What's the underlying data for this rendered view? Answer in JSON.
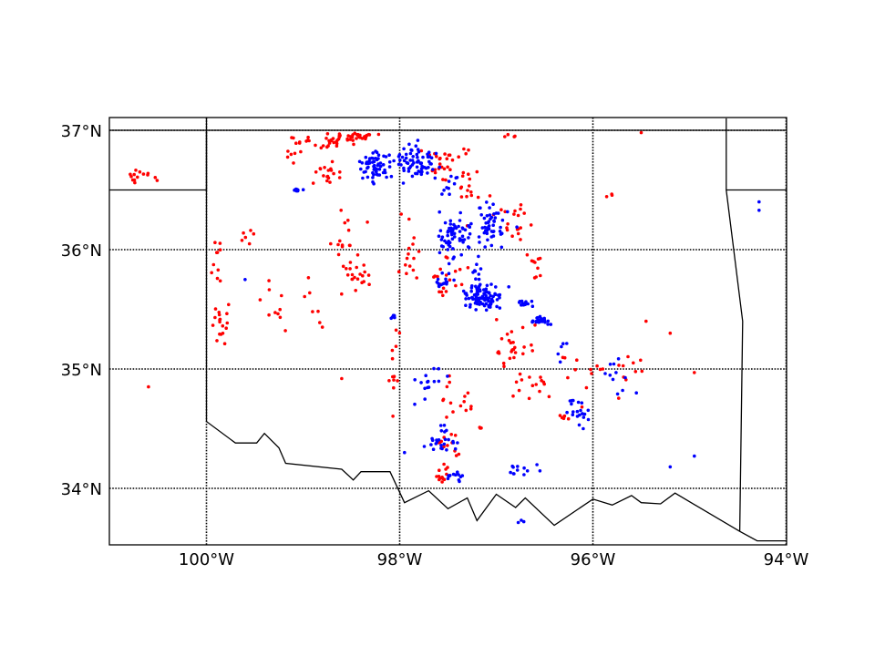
{
  "axes": {
    "x_ticks": [
      {
        "value": -100,
        "label": "100°W"
      },
      {
        "value": -98,
        "label": "98°W"
      },
      {
        "value": -96,
        "label": "96°W"
      },
      {
        "value": -94,
        "label": "94°W"
      }
    ],
    "y_ticks": [
      {
        "value": 37,
        "label": "37°N"
      },
      {
        "value": 36,
        "label": "36°N"
      },
      {
        "value": 35,
        "label": "35°N"
      },
      {
        "value": 34,
        "label": "34°N"
      }
    ],
    "lon_range": [
      -101.0,
      -94.0
    ],
    "lat_range": [
      33.5,
      37.1
    ],
    "grid": "dotted"
  },
  "colors": {
    "series_a": "#ff0000",
    "series_b": "#0000ff",
    "border": "#000000"
  },
  "borders": [
    [
      [
        -101.0,
        36.5
      ],
      [
        -100.0,
        36.5
      ],
      [
        -100.0,
        37.1
      ]
    ],
    [
      [
        -101.0,
        37.0
      ],
      [
        -94.0,
        37.0
      ]
    ],
    [
      [
        -94.62,
        37.1
      ],
      [
        -94.62,
        36.5
      ],
      [
        -94.0,
        36.5
      ]
    ],
    [
      [
        -94.62,
        36.5
      ],
      [
        -94.45,
        35.4
      ],
      [
        -94.48,
        33.64
      ]
    ],
    [
      [
        -100.0,
        37.0
      ],
      [
        -100.0,
        34.56
      ],
      [
        -99.7,
        34.38
      ],
      [
        -99.48,
        34.38
      ],
      [
        -99.4,
        34.46
      ],
      [
        -99.25,
        34.34
      ],
      [
        -99.18,
        34.21
      ],
      [
        -98.6,
        34.16
      ],
      [
        -98.48,
        34.07
      ],
      [
        -98.4,
        34.14
      ],
      [
        -98.1,
        34.14
      ],
      [
        -97.95,
        33.88
      ],
      [
        -97.7,
        33.98
      ],
      [
        -97.5,
        33.83
      ],
      [
        -97.3,
        33.92
      ],
      [
        -97.2,
        33.73
      ],
      [
        -97.0,
        33.95
      ],
      [
        -96.8,
        33.84
      ],
      [
        -96.7,
        33.92
      ],
      [
        -96.4,
        33.69
      ],
      [
        -96.0,
        33.91
      ],
      [
        -95.8,
        33.86
      ],
      [
        -95.6,
        33.94
      ],
      [
        -95.5,
        33.88
      ],
      [
        -95.3,
        33.87
      ],
      [
        -95.15,
        33.96
      ],
      [
        -94.48,
        33.64
      ],
      [
        -94.3,
        33.56
      ],
      [
        -94.0,
        33.56
      ]
    ]
  ],
  "series": [
    {
      "color_key": "series_a",
      "clusters": [
        {
          "lon": -100.7,
          "lat": 36.62,
          "dlon": 0.25,
          "dlat": 0.08,
          "n": 14
        },
        {
          "lon": -98.8,
          "lat": 36.9,
          "dlon": 0.55,
          "dlat": 0.07,
          "n": 30
        },
        {
          "lon": -98.4,
          "lat": 36.95,
          "dlon": 0.4,
          "dlat": 0.05,
          "n": 30
        },
        {
          "lon": -99.1,
          "lat": 36.8,
          "dlon": 0.1,
          "dlat": 0.1,
          "n": 6
        },
        {
          "lon": -98.75,
          "lat": 36.65,
          "dlon": 0.3,
          "dlat": 0.2,
          "n": 18
        },
        {
          "lon": -97.55,
          "lat": 36.75,
          "dlon": 0.4,
          "dlat": 0.25,
          "n": 25
        },
        {
          "lon": -97.35,
          "lat": 36.55,
          "dlon": 0.25,
          "dlat": 0.3,
          "n": 15
        },
        {
          "lon": -96.85,
          "lat": 36.95,
          "dlon": 0.1,
          "dlat": 0.05,
          "n": 4
        },
        {
          "lon": -99.85,
          "lat": 35.4,
          "dlon": 0.15,
          "dlat": 0.25,
          "n": 18
        },
        {
          "lon": -99.9,
          "lat": 35.9,
          "dlon": 0.1,
          "dlat": 0.4,
          "n": 10
        },
        {
          "lon": -99.55,
          "lat": 36.1,
          "dlon": 0.15,
          "dlat": 0.25,
          "n": 6
        },
        {
          "lon": -99.3,
          "lat": 35.55,
          "dlon": 0.2,
          "dlat": 0.35,
          "n": 10
        },
        {
          "lon": -98.9,
          "lat": 35.6,
          "dlon": 0.15,
          "dlat": 0.35,
          "n": 6
        },
        {
          "lon": -98.6,
          "lat": 36.0,
          "dlon": 0.3,
          "dlat": 0.5,
          "n": 20
        },
        {
          "lon": -98.45,
          "lat": 35.75,
          "dlon": 0.2,
          "dlat": 0.2,
          "n": 15
        },
        {
          "lon": -98.05,
          "lat": 35.0,
          "dlon": 0.08,
          "dlat": 0.6,
          "n": 12
        },
        {
          "lon": -97.85,
          "lat": 36.0,
          "dlon": 0.25,
          "dlat": 0.35,
          "n": 15
        },
        {
          "lon": -97.5,
          "lat": 35.75,
          "dlon": 0.3,
          "dlat": 0.35,
          "n": 20
        },
        {
          "lon": -96.85,
          "lat": 36.25,
          "dlon": 0.3,
          "dlat": 0.3,
          "n": 20
        },
        {
          "lon": -96.6,
          "lat": 35.9,
          "dlon": 0.15,
          "dlat": 0.3,
          "n": 10
        },
        {
          "lon": -96.8,
          "lat": 35.2,
          "dlon": 0.35,
          "dlat": 0.3,
          "n": 25
        },
        {
          "lon": -96.65,
          "lat": 34.85,
          "dlon": 0.3,
          "dlat": 0.2,
          "n": 15
        },
        {
          "lon": -97.4,
          "lat": 34.75,
          "dlon": 0.3,
          "dlat": 0.3,
          "n": 15
        },
        {
          "lon": -97.5,
          "lat": 34.3,
          "dlon": 0.2,
          "dlat": 0.25,
          "n": 15
        },
        {
          "lon": -97.55,
          "lat": 34.1,
          "dlon": 0.15,
          "dlat": 0.1,
          "n": 10
        },
        {
          "lon": -96.3,
          "lat": 34.6,
          "dlon": 0.1,
          "dlat": 0.05,
          "n": 6
        },
        {
          "lon": -96.1,
          "lat": 35.0,
          "dlon": 0.3,
          "dlat": 0.4,
          "n": 12
        },
        {
          "lon": -95.6,
          "lat": 35.0,
          "dlon": 0.4,
          "dlat": 0.3,
          "n": 10
        },
        {
          "lon": -95.8,
          "lat": 36.5,
          "dlon": 0.3,
          "dlat": 0.15,
          "n": 3
        },
        {
          "lon": -97.15,
          "lat": 34.5,
          "dlon": 0.05,
          "dlat": 0.03,
          "n": 3
        }
      ],
      "points": [
        [
          -100.6,
          34.85
        ],
        [
          -95.5,
          36.98
        ],
        [
          -98.8,
          35.35
        ],
        [
          -98.6,
          34.92
        ],
        [
          -95.2,
          35.3
        ],
        [
          -94.95,
          34.97
        ],
        [
          -95.45,
          35.4
        ],
        [
          -97.3,
          36.2
        ]
      ]
    },
    {
      "color_key": "series_b",
      "clusters": [
        {
          "lon": -98.25,
          "lat": 36.7,
          "dlon": 0.25,
          "dlat": 0.2,
          "n": 60
        },
        {
          "lon": -97.8,
          "lat": 36.75,
          "dlon": 0.3,
          "dlat": 0.22,
          "n": 70
        },
        {
          "lon": -97.5,
          "lat": 36.55,
          "dlon": 0.15,
          "dlat": 0.12,
          "n": 10
        },
        {
          "lon": -99.05,
          "lat": 36.5,
          "dlon": 0.08,
          "dlat": 0.02,
          "n": 10
        },
        {
          "lon": -97.45,
          "lat": 36.1,
          "dlon": 0.25,
          "dlat": 0.25,
          "n": 60
        },
        {
          "lon": -97.05,
          "lat": 36.2,
          "dlon": 0.3,
          "dlat": 0.3,
          "n": 50
        },
        {
          "lon": -97.15,
          "lat": 35.6,
          "dlon": 0.3,
          "dlat": 0.15,
          "n": 90
        },
        {
          "lon": -96.7,
          "lat": 35.55,
          "dlon": 0.1,
          "dlat": 0.05,
          "n": 15
        },
        {
          "lon": -96.55,
          "lat": 35.4,
          "dlon": 0.15,
          "dlat": 0.06,
          "n": 30
        },
        {
          "lon": -97.55,
          "lat": 35.75,
          "dlon": 0.15,
          "dlat": 0.15,
          "n": 15
        },
        {
          "lon": -97.7,
          "lat": 34.9,
          "dlon": 0.25,
          "dlat": 0.25,
          "n": 15
        },
        {
          "lon": -97.6,
          "lat": 34.4,
          "dlon": 0.25,
          "dlat": 0.2,
          "n": 25
        },
        {
          "lon": -97.4,
          "lat": 34.1,
          "dlon": 0.2,
          "dlat": 0.1,
          "n": 12
        },
        {
          "lon": -96.75,
          "lat": 34.15,
          "dlon": 0.25,
          "dlat": 0.1,
          "n": 12
        },
        {
          "lon": -96.15,
          "lat": 34.65,
          "dlon": 0.15,
          "dlat": 0.15,
          "n": 20
        },
        {
          "lon": -95.8,
          "lat": 34.95,
          "dlon": 0.2,
          "dlat": 0.25,
          "n": 10
        },
        {
          "lon": -98.05,
          "lat": 35.45,
          "dlon": 0.05,
          "dlat": 0.08,
          "n": 6
        },
        {
          "lon": -96.3,
          "lat": 35.2,
          "dlon": 0.15,
          "dlat": 0.2,
          "n": 5
        },
        {
          "lon": -96.75,
          "lat": 33.72,
          "dlon": 0.05,
          "dlat": 0.02,
          "n": 3
        },
        {
          "lon": -97.2,
          "lat": 35.75,
          "dlon": 0.1,
          "dlat": 0.2,
          "n": 12
        }
      ],
      "points": [
        [
          -94.28,
          36.4
        ],
        [
          -94.28,
          36.33
        ],
        [
          -95.2,
          34.18
        ],
        [
          -94.95,
          34.27
        ],
        [
          -95.55,
          34.8
        ],
        [
          -96.1,
          34.5
        ],
        [
          -97.95,
          34.3
        ],
        [
          -99.6,
          35.75
        ]
      ]
    }
  ]
}
